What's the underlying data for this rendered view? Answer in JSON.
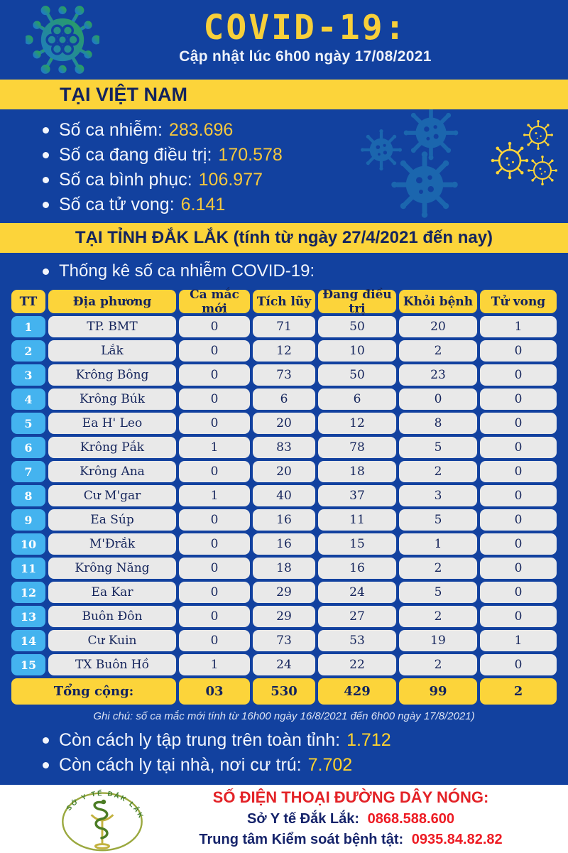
{
  "colors": {
    "background": "#12419f",
    "banner_yellow": "#fcd43a",
    "navy_text": "#13235e",
    "value_yellow": "#f5c73e",
    "bottom_value_yellow": "#ffd22e",
    "tt_blue": "#44b3ef",
    "cell_gray": "#e9e9e9",
    "hotline_red": "#e32227",
    "phone_red": "#ed1c24"
  },
  "icons": {
    "header": "virus-icon",
    "decorations": "virus-icons",
    "footer": "health-dept-logo"
  },
  "header": {
    "title": "COVID-19:",
    "subtitle": "Cập nhật lúc 6h00 ngày 17/08/2021"
  },
  "vietnam": {
    "banner": "TẠI VIỆT NAM",
    "stats": [
      {
        "label": "Số ca nhiễm:",
        "value": "283.696"
      },
      {
        "label": "Số ca đang điều trị:",
        "value": "170.578"
      },
      {
        "label": "Số ca bình phục:",
        "value": "106.977"
      },
      {
        "label": "Số ca tử vong:",
        "value": "6.141"
      }
    ]
  },
  "daklak": {
    "banner": "TẠI TỈNH ĐẮK LẮK (tính từ ngày 27/4/2021 đến nay)",
    "section_title": "Thống kê số ca nhiễm COVID-19:"
  },
  "table": {
    "headers": [
      "TT",
      "Địa phương",
      "Ca mắc mới",
      "Tích lũy",
      "Đang điều trị",
      "Khỏi bệnh",
      "Tử vong"
    ],
    "rows": [
      [
        "1",
        "TP. BMT",
        "0",
        "71",
        "50",
        "20",
        "1"
      ],
      [
        "2",
        "Lắk",
        "0",
        "12",
        "10",
        "2",
        "0"
      ],
      [
        "3",
        "Krông Bông",
        "0",
        "73",
        "50",
        "23",
        "0"
      ],
      [
        "4",
        "Krông Búk",
        "0",
        "6",
        "6",
        "0",
        "0"
      ],
      [
        "5",
        "Ea H' Leo",
        "0",
        "20",
        "12",
        "8",
        "0"
      ],
      [
        "6",
        "Krông Pắk",
        "1",
        "83",
        "78",
        "5",
        "0"
      ],
      [
        "7",
        "Krông Ana",
        "0",
        "20",
        "18",
        "2",
        "0"
      ],
      [
        "8",
        "Cư M'gar",
        "1",
        "40",
        "37",
        "3",
        "0"
      ],
      [
        "9",
        "Ea Súp",
        "0",
        "16",
        "11",
        "5",
        "0"
      ],
      [
        "10",
        "M'Đrắk",
        "0",
        "16",
        "15",
        "1",
        "0"
      ],
      [
        "11",
        "Krông Năng",
        "0",
        "18",
        "16",
        "2",
        "0"
      ],
      [
        "12",
        "Ea Kar",
        "0",
        "29",
        "24",
        "5",
        "0"
      ],
      [
        "13",
        "Buôn Đôn",
        "0",
        "29",
        "27",
        "2",
        "0"
      ],
      [
        "14",
        "Cư Kuin",
        "0",
        "73",
        "53",
        "19",
        "1"
      ],
      [
        "15",
        "TX Buôn Hồ",
        "1",
        "24",
        "22",
        "2",
        "0"
      ]
    ],
    "total": {
      "label": "Tổng cộng:",
      "values": [
        "03",
        "530",
        "429",
        "99",
        "2"
      ]
    }
  },
  "note": "Ghi chú: số ca mắc mới tính từ 16h00 ngày 16/8/2021 đến 6h00 ngày 17/8/2021)",
  "quarantine": [
    {
      "label": "Còn cách ly tập trung trên toàn tỉnh:",
      "value": "1.712"
    },
    {
      "label": "Còn cách ly tại nhà, nơi cư trú:",
      "value": "7.702"
    }
  ],
  "footer": {
    "logo_text": "SỞ Y TẾ ĐẮK LẮK",
    "hotline_title": "SỐ ĐIỆN THOẠI ĐƯỜNG DÂY NÓNG:",
    "lines": [
      {
        "label": "Sở Y tế Đắk Lắk:",
        "phone": "0868.588.600"
      },
      {
        "label": "Trung tâm Kiểm soát bệnh tật:",
        "phone": "0935.84.82.82"
      }
    ]
  }
}
